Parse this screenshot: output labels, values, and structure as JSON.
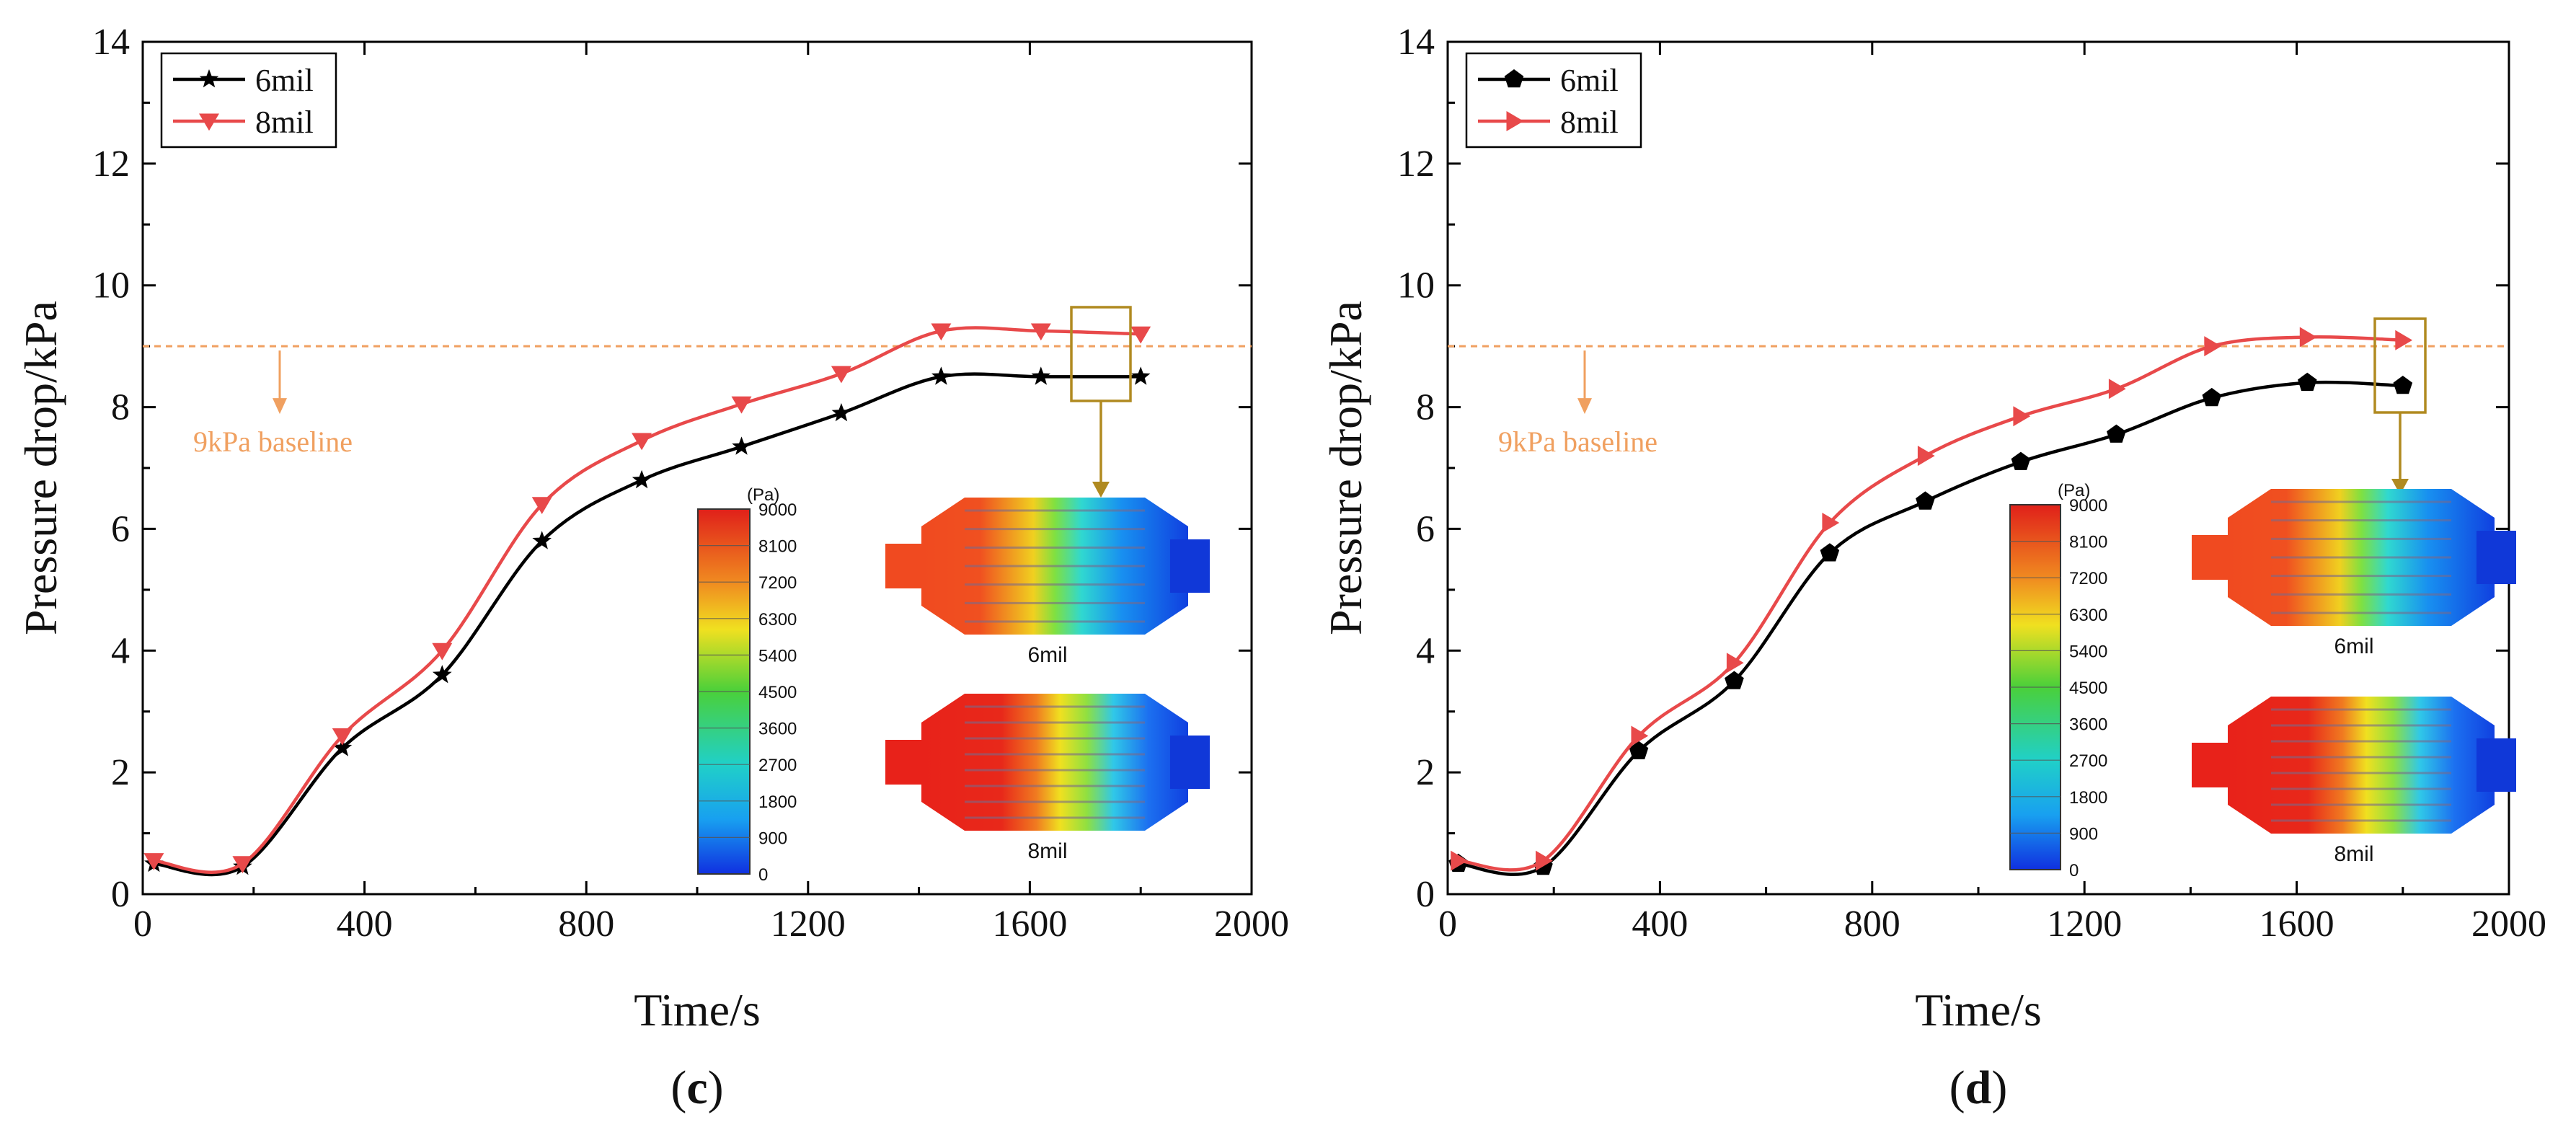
{
  "chart_data": [
    {
      "panel_label": "c",
      "type": "line",
      "xlabel": "Time/s",
      "ylabel": "Pressure drop/kPa",
      "xlim": [
        0,
        2000
      ],
      "ylim": [
        0,
        14
      ],
      "xticks": [
        0,
        400,
        800,
        1200,
        1600,
        2000
      ],
      "yticks": [
        0,
        2,
        4,
        6,
        8,
        10,
        12,
        14
      ],
      "grid": false,
      "legend_position": "top-left",
      "series": [
        {
          "name": "6mil",
          "color": "#000000",
          "marker": "star",
          "x": [
            20,
            180,
            360,
            540,
            720,
            900,
            1080,
            1260,
            1440,
            1620,
            1800
          ],
          "y": [
            0.5,
            0.45,
            2.4,
            3.6,
            5.8,
            6.8,
            7.35,
            7.9,
            8.5,
            8.5,
            8.5
          ]
        },
        {
          "name": "8mil",
          "color": "#e8494a",
          "marker": "triangle-down",
          "x": [
            20,
            180,
            360,
            540,
            720,
            900,
            1080,
            1260,
            1440,
            1620,
            1800
          ],
          "y": [
            0.55,
            0.5,
            2.6,
            4.0,
            6.4,
            7.45,
            8.05,
            8.55,
            9.25,
            9.25,
            9.2
          ]
        }
      ],
      "baseline": {
        "value": 9,
        "label": "9kPa baseline",
        "color": "#f0a060"
      },
      "inset": {
        "colorbar_unit": "(Pa)",
        "colorbar_ticks": [
          "9000",
          "8100",
          "7200",
          "6300",
          "5400",
          "4500",
          "3600",
          "2700",
          "1800",
          "900",
          "0"
        ],
        "contour_labels": [
          "6mil",
          "8mil"
        ]
      }
    },
    {
      "panel_label": "d",
      "type": "line",
      "xlabel": "Time/s",
      "ylabel": "Pressure drop/kPa",
      "xlim": [
        0,
        2000
      ],
      "ylim": [
        0,
        14
      ],
      "xticks": [
        0,
        400,
        800,
        1200,
        1600,
        2000
      ],
      "yticks": [
        0,
        2,
        4,
        6,
        8,
        10,
        12,
        14
      ],
      "grid": false,
      "legend_position": "top-left",
      "series": [
        {
          "name": "6mil",
          "color": "#000000",
          "marker": "pentagon",
          "x": [
            20,
            180,
            360,
            540,
            720,
            900,
            1080,
            1260,
            1440,
            1620,
            1800
          ],
          "y": [
            0.5,
            0.45,
            2.35,
            3.5,
            5.6,
            6.45,
            7.1,
            7.55,
            8.15,
            8.4,
            8.35
          ]
        },
        {
          "name": "8mil",
          "color": "#e8494a",
          "marker": "triangle-right",
          "x": [
            20,
            180,
            360,
            540,
            720,
            900,
            1080,
            1260,
            1440,
            1620,
            1800
          ],
          "y": [
            0.55,
            0.55,
            2.6,
            3.8,
            6.1,
            7.2,
            7.85,
            8.3,
            9.0,
            9.15,
            9.1
          ]
        }
      ],
      "baseline": {
        "value": 9,
        "label": "9kPa baseline",
        "color": "#f0a060"
      },
      "inset": {
        "colorbar_unit": "(Pa)",
        "colorbar_ticks": [
          "9000",
          "8100",
          "7200",
          "6300",
          "5400",
          "4500",
          "3600",
          "2700",
          "1800",
          "900",
          "0"
        ],
        "contour_labels": [
          "6mil",
          "8mil"
        ]
      }
    }
  ]
}
